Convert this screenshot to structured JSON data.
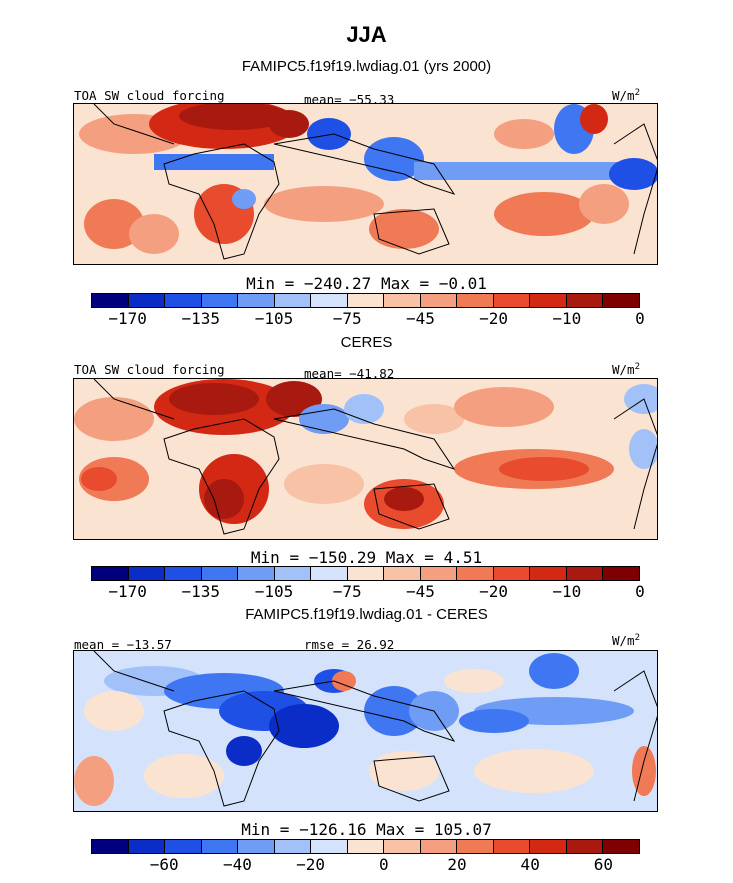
{
  "season": "JJA",
  "panels": [
    {
      "subtitle": "FAMIPC5.f19f19.lwdiag.01 (yrs 2000)",
      "left_label": "TOA SW cloud forcing",
      "mid_label": "mean= −55.33",
      "units_label": "W/m",
      "units_exp": "2",
      "minmax": "Min = −240.27 Max =  −0.01",
      "colorbar": "abs",
      "tick_labels": [
        "−170",
        "−135",
        "−105",
        "−75",
        "−45",
        "−20",
        "−10",
        "0"
      ]
    },
    {
      "subtitle": "CERES",
      "left_label": "TOA SW cloud forcing",
      "mid_label": "mean= −41.82",
      "units_label": "W/m",
      "units_exp": "2",
      "minmax": "Min = −150.29 Max =   4.51",
      "colorbar": "abs",
      "tick_labels": [
        "−170",
        "−135",
        "−105",
        "−75",
        "−45",
        "−20",
        "−10",
        "0"
      ]
    },
    {
      "subtitle": "FAMIPC5.f19f19.lwdiag.01 - CERES",
      "left_label": "mean = −13.57",
      "mid_label": "rmse =  26.92",
      "units_label": "W/m",
      "units_exp": "2",
      "minmax": "Min = −126.16 Max = 105.07",
      "colorbar": "diff",
      "tick_labels": [
        "−60",
        "−40",
        "−20",
        "0",
        "20",
        "40",
        "60"
      ]
    }
  ],
  "colors": {
    "palette": [
      "#00007f",
      "#0a2dc8",
      "#1f50e6",
      "#3f76f2",
      "#6f9cf5",
      "#a3c1f9",
      "#d4e3fb",
      "#fbe3d2",
      "#f8c2a6",
      "#f4a080",
      "#ef7a55",
      "#e84b2d",
      "#d22814",
      "#a81a10",
      "#7f0000"
    ]
  }
}
